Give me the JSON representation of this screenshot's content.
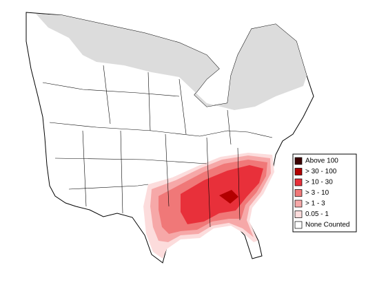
{
  "legend": {
    "items": [
      {
        "label": "Above 100",
        "color": "#3d0000"
      },
      {
        "label": "> 30 - 100",
        "color": "#b30000"
      },
      {
        "label": "> 10 - 30",
        "color": "#e8303a"
      },
      {
        "label": "> 3 - 10",
        "color": "#f07878"
      },
      {
        "label": "> 1 - 3",
        "color": "#f6a8a8"
      },
      {
        "label": "0.05 - 1",
        "color": "#fcdcdc"
      },
      {
        "label": "None Counted",
        "color": "#ffffff"
      }
    ]
  }
}
